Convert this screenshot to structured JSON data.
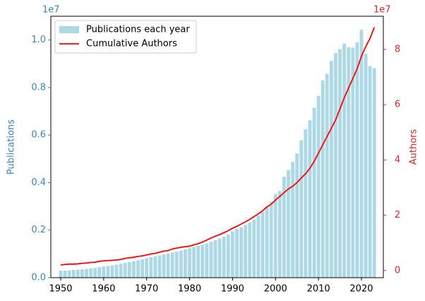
{
  "chart_data": {
    "type": "bar_line_dual",
    "x": [
      1950,
      1951,
      1952,
      1953,
      1954,
      1955,
      1956,
      1957,
      1958,
      1959,
      1960,
      1961,
      1962,
      1963,
      1964,
      1965,
      1966,
      1967,
      1968,
      1969,
      1970,
      1971,
      1972,
      1973,
      1974,
      1975,
      1976,
      1977,
      1978,
      1979,
      1980,
      1981,
      1982,
      1983,
      1984,
      1985,
      1986,
      1987,
      1988,
      1989,
      1990,
      1991,
      1992,
      1993,
      1994,
      1995,
      1996,
      1997,
      1998,
      1999,
      2000,
      2001,
      2002,
      2003,
      2004,
      2005,
      2006,
      2007,
      2008,
      2009,
      2010,
      2011,
      2012,
      2013,
      2014,
      2015,
      2016,
      2017,
      2018,
      2019,
      2020,
      2021,
      2022,
      2023
    ],
    "series": [
      {
        "name": "Publications each year",
        "kind": "bar",
        "color": "#add8e6",
        "axis": "y",
        "values": [
          0.03,
          0.03,
          0.031,
          0.033,
          0.034,
          0.035,
          0.037,
          0.039,
          0.041,
          0.044,
          0.047,
          0.049,
          0.052,
          0.055,
          0.058,
          0.062,
          0.066,
          0.069,
          0.073,
          0.077,
          0.082,
          0.086,
          0.09,
          0.094,
          0.098,
          0.102,
          0.106,
          0.11,
          0.114,
          0.119,
          0.124,
          0.129,
          0.134,
          0.139,
          0.145,
          0.151,
          0.158,
          0.165,
          0.173,
          0.181,
          0.195,
          0.205,
          0.212,
          0.222,
          0.232,
          0.245,
          0.262,
          0.278,
          0.3,
          0.32,
          0.352,
          0.365,
          0.425,
          0.452,
          0.487,
          0.522,
          0.578,
          0.625,
          0.662,
          0.715,
          0.765,
          0.83,
          0.858,
          0.912,
          0.945,
          0.962,
          0.985,
          0.97,
          0.968,
          0.99,
          1.043,
          0.942,
          0.89,
          0.882
        ]
      },
      {
        "name": "Cumulative Authors",
        "kind": "line",
        "color": "#ff0000",
        "axis": "y2",
        "values": [
          0.2,
          0.22,
          0.23,
          0.23,
          0.24,
          0.26,
          0.27,
          0.29,
          0.3,
          0.33,
          0.35,
          0.36,
          0.37,
          0.38,
          0.4,
          0.44,
          0.46,
          0.48,
          0.51,
          0.53,
          0.56,
          0.6,
          0.62,
          0.66,
          0.7,
          0.72,
          0.78,
          0.81,
          0.84,
          0.86,
          0.88,
          0.93,
          0.97,
          1.03,
          1.1,
          1.18,
          1.24,
          1.3,
          1.37,
          1.44,
          1.53,
          1.6,
          1.68,
          1.76,
          1.85,
          1.95,
          2.05,
          2.16,
          2.3,
          2.4,
          2.55,
          2.68,
          2.82,
          2.95,
          3.05,
          3.18,
          3.35,
          3.5,
          3.7,
          3.95,
          4.25,
          4.55,
          4.85,
          5.15,
          5.45,
          5.85,
          6.25,
          6.6,
          6.95,
          7.3,
          7.75,
          8.1,
          8.4,
          8.8
        ]
      }
    ],
    "xlim": [
      1947.7,
      2025.1
    ],
    "xticks": [
      1950,
      1960,
      1970,
      1980,
      1990,
      2000,
      2010,
      2020
    ],
    "ylim": [
      0,
      1.1
    ],
    "yticks": [
      {
        "value": 0,
        "label": "0.0"
      },
      {
        "value": 0.2,
        "label": "0.2"
      },
      {
        "value": 0.4,
        "label": "0.4"
      },
      {
        "value": 0.6,
        "label": "0.6"
      },
      {
        "value": 0.8,
        "label": "0.8"
      },
      {
        "value": 1.0,
        "label": "1.0"
      }
    ],
    "y_offset_label": "1e7",
    "y_label": "Publications",
    "y_color": "#3a86b4",
    "y2lim": [
      -0.26,
      9.2
    ],
    "y2ticks": [
      0,
      2,
      4,
      6,
      8
    ],
    "y2_offset_label": "1e7",
    "y2_label": "Authors",
    "y2_color": "#d62728",
    "legend": "upper left"
  }
}
